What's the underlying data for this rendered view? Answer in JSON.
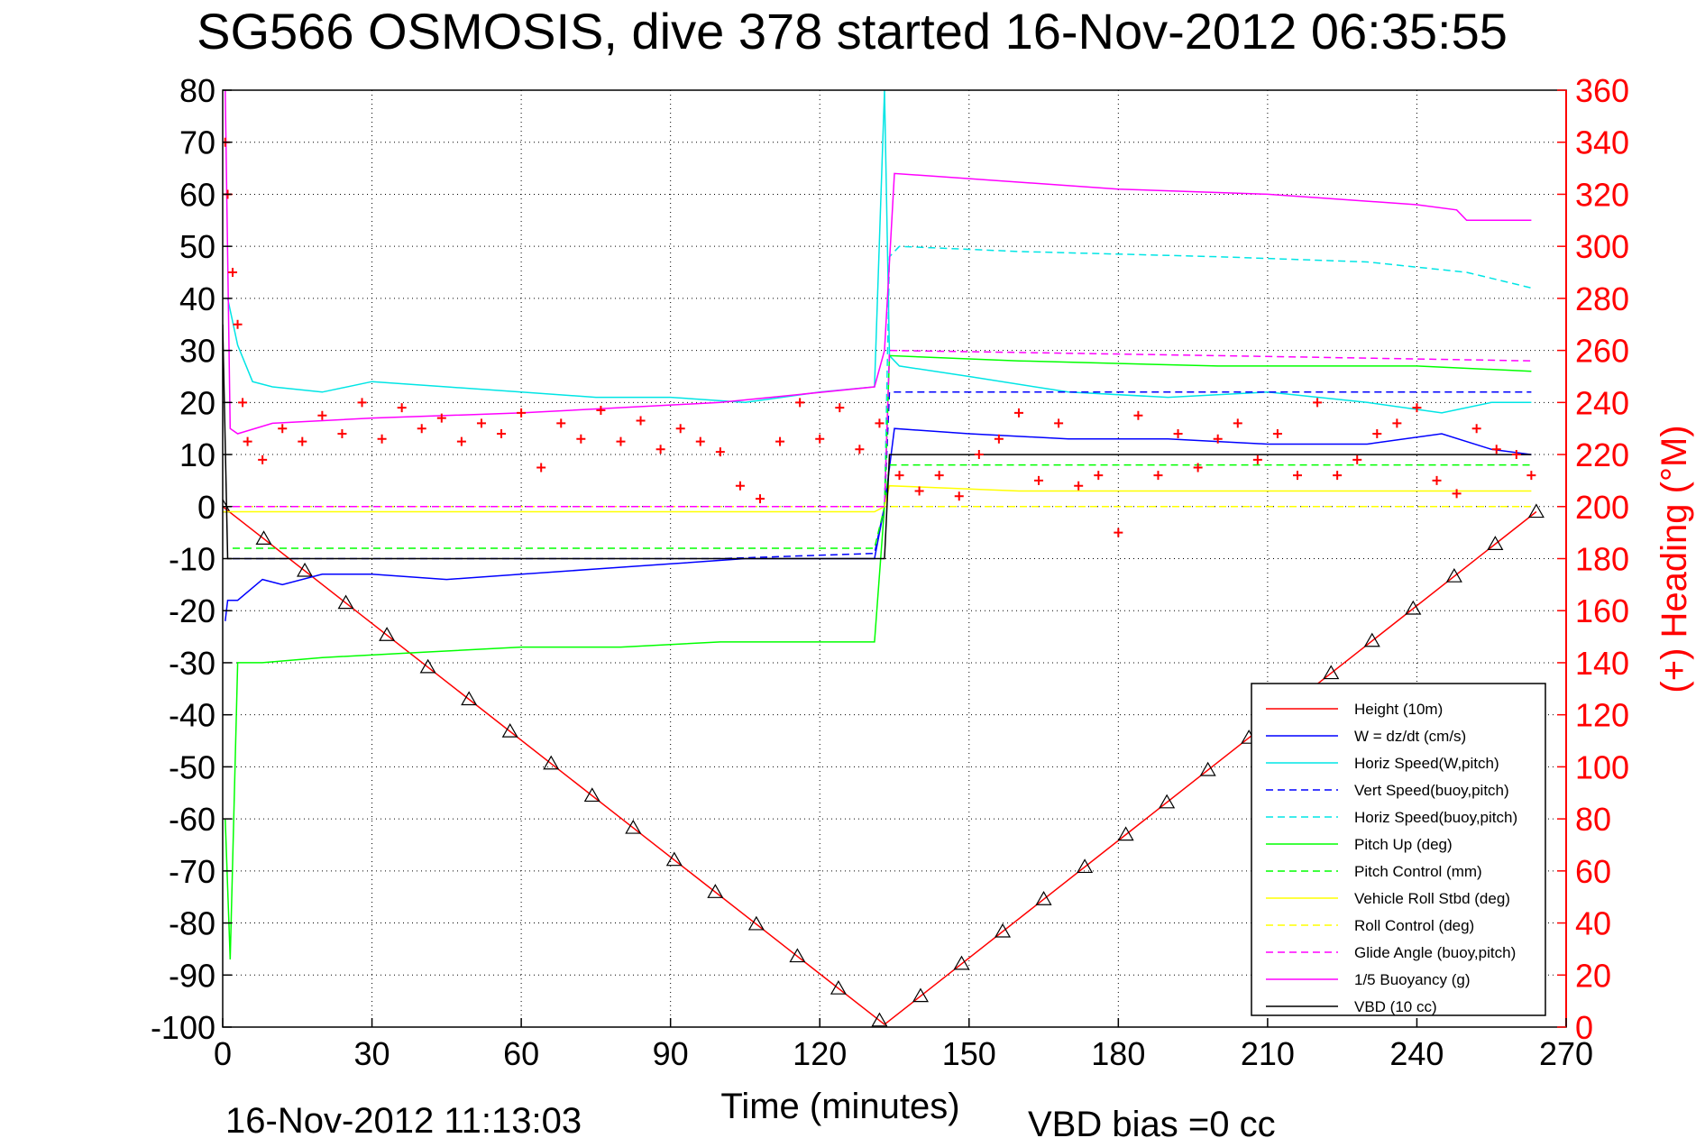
{
  "title": "SG566 OSMOSIS, dive 378 started 16-Nov-2012 06:35:55",
  "footer_left": "16-Nov-2012 11:13:03",
  "footer_right": "VBD bias =0 cc",
  "chart_data": {
    "type": "line",
    "title": "SG566 OSMOSIS, dive 378 started 16-Nov-2012 06:35:55",
    "xlabel": "Time (minutes)",
    "ylabel": "",
    "ylabel_right": "(+) Heading (°M)",
    "xlim": [
      0,
      270
    ],
    "ylim": [
      -100,
      80
    ],
    "ylim_right": [
      0,
      360
    ],
    "xticks": [
      0,
      30,
      60,
      90,
      120,
      150,
      180,
      210,
      240,
      270
    ],
    "yticks": [
      80,
      70,
      60,
      50,
      40,
      30,
      20,
      10,
      0,
      -10,
      -20,
      -30,
      -40,
      -50,
      -60,
      -70,
      -80,
      -90,
      -100
    ],
    "yticks_right": [
      360,
      340,
      320,
      300,
      280,
      260,
      240,
      220,
      200,
      180,
      160,
      140,
      120,
      100,
      80,
      60,
      40,
      20,
      0
    ],
    "grid": true,
    "legend_position": "bottom-right",
    "series": [
      {
        "name": "Height (10m)",
        "color": "#ff0000",
        "style": "solid",
        "x": [
          0,
          133,
          264
        ],
        "y": [
          0,
          -99.5,
          -1
        ]
      },
      {
        "name": "W = dz/dt (cm/s)",
        "color": "#0000ff",
        "style": "solid",
        "x": [
          0.5,
          1,
          3,
          8,
          12,
          20,
          30,
          45,
          60,
          75,
          90,
          105,
          120,
          131,
          133,
          135,
          150,
          170,
          190,
          210,
          230,
          245,
          255,
          263
        ],
        "y": [
          -22,
          -18,
          -18,
          -14,
          -15,
          -13,
          -13,
          -14,
          -13,
          -12,
          -11,
          -10,
          -10,
          -10,
          0,
          15,
          14,
          13,
          13,
          12,
          12,
          14,
          11,
          10
        ]
      },
      {
        "name": "Horiz Speed(W,pitch)",
        "color": "#00e5e5",
        "style": "solid",
        "x": [
          1,
          3,
          6,
          10,
          20,
          30,
          45,
          60,
          75,
          90,
          105,
          120,
          131,
          133,
          134,
          136,
          150,
          170,
          190,
          210,
          230,
          245,
          255,
          263
        ],
        "y": [
          40,
          31,
          24,
          23,
          22,
          24,
          23,
          22,
          21,
          21,
          20,
          22,
          23,
          80,
          29,
          27,
          25,
          22,
          21,
          22,
          20,
          18,
          20,
          20
        ]
      },
      {
        "name": "Vert Speed(buoy,pitch)",
        "color": "#0000ff",
        "style": "dashed",
        "x": [
          2,
          20,
          60,
          100,
          131,
          133,
          134,
          160,
          200,
          240,
          263
        ],
        "y": [
          -10,
          -10,
          -10,
          -10,
          -9,
          0,
          22,
          22,
          22,
          22,
          22
        ]
      },
      {
        "name": "Horiz Speed(buoy,pitch)",
        "color": "#00e5e5",
        "style": "dashed",
        "x": [
          133,
          134,
          136,
          160,
          200,
          230,
          250,
          263
        ],
        "y": [
          0,
          48,
          50,
          49,
          48,
          47,
          45,
          42
        ]
      },
      {
        "name": "Pitch Up (deg)",
        "color": "#00ff00",
        "style": "solid",
        "x": [
          0.5,
          1.5,
          3,
          8,
          20,
          40,
          60,
          80,
          100,
          120,
          131,
          133,
          134,
          160,
          200,
          240,
          263
        ],
        "y": [
          -60,
          -87,
          -30,
          -30,
          -29,
          -28,
          -27,
          -27,
          -26,
          -26,
          -26,
          0,
          29,
          28,
          27,
          27,
          26
        ]
      },
      {
        "name": "Pitch Control (mm)",
        "color": "#00ff00",
        "style": "dashed",
        "x": [
          2,
          5,
          60,
          131,
          133,
          134,
          263
        ],
        "y": [
          -8,
          -8,
          -8,
          -8,
          0,
          8,
          8
        ]
      },
      {
        "name": "Vehicle Roll Stbd (deg)",
        "color": "#ffff00",
        "style": "solid",
        "x": [
          0,
          3,
          20,
          60,
          100,
          131,
          133,
          134,
          160,
          200,
          240,
          263
        ],
        "y": [
          -1,
          -1,
          -1,
          -1,
          -1,
          -1,
          0,
          4,
          3,
          3,
          3,
          3
        ]
      },
      {
        "name": "Roll Control (deg)",
        "color": "#ffff00",
        "style": "dashed",
        "x": [
          0,
          3,
          60,
          131,
          133,
          134,
          263
        ],
        "y": [
          0,
          0,
          0,
          0,
          0,
          0,
          0
        ]
      },
      {
        "name": "Glide Angle (buoy,pitch)",
        "color": "#ff00ff",
        "style": "dashed",
        "x": [
          2,
          60,
          131,
          133,
          134,
          200,
          263
        ],
        "y": [
          0,
          0,
          0,
          0,
          30,
          29,
          28
        ]
      },
      {
        "name": "1/5 Buoyancy (g)",
        "color": "#ff00ff",
        "style": "solid",
        "x": [
          0.5,
          1.5,
          3,
          10,
          30,
          60,
          100,
          131,
          133,
          135,
          150,
          180,
          210,
          240,
          248,
          250,
          263
        ],
        "y": [
          80,
          15,
          14,
          16,
          17,
          18,
          20,
          23,
          30,
          64,
          63,
          61,
          60,
          58,
          57,
          55,
          55
        ]
      },
      {
        "name": "VBD (10 cc)",
        "color": "#000000",
        "style": "solid",
        "x": [
          0,
          1,
          3,
          131,
          133,
          134,
          263
        ],
        "y": [
          35,
          -10,
          -10,
          -10,
          -10,
          10,
          10
        ]
      },
      {
        "name": "(+) Heading (°M)",
        "color": "#ff0000",
        "style": "markers",
        "axis": "right",
        "x": [
          0.5,
          1,
          2,
          3,
          4,
          5,
          8,
          12,
          16,
          20,
          24,
          28,
          32,
          36,
          40,
          44,
          48,
          52,
          56,
          60,
          64,
          68,
          72,
          76,
          80,
          84,
          88,
          92,
          96,
          100,
          104,
          108,
          112,
          116,
          120,
          124,
          128,
          132,
          136,
          140,
          144,
          148,
          152,
          156,
          160,
          164,
          168,
          172,
          176,
          180,
          184,
          188,
          192,
          196,
          200,
          204,
          208,
          212,
          216,
          220,
          224,
          228,
          232,
          236,
          240,
          244,
          248,
          252,
          256,
          260,
          263
        ],
        "y": [
          340,
          320,
          290,
          270,
          240,
          225,
          218,
          230,
          225,
          235,
          228,
          240,
          226,
          238,
          230,
          234,
          225,
          232,
          228,
          236,
          215,
          232,
          226,
          237,
          225,
          233,
          222,
          230,
          225,
          221,
          208,
          203,
          225,
          240,
          226,
          238,
          222,
          232,
          212,
          206,
          212,
          204,
          220,
          226,
          236,
          210,
          232,
          208,
          212,
          190,
          235,
          212,
          228,
          215,
          226,
          232,
          218,
          228,
          212,
          240,
          212,
          218,
          228,
          232,
          238,
          210,
          205,
          230,
          222,
          220,
          212
        ]
      }
    ]
  }
}
